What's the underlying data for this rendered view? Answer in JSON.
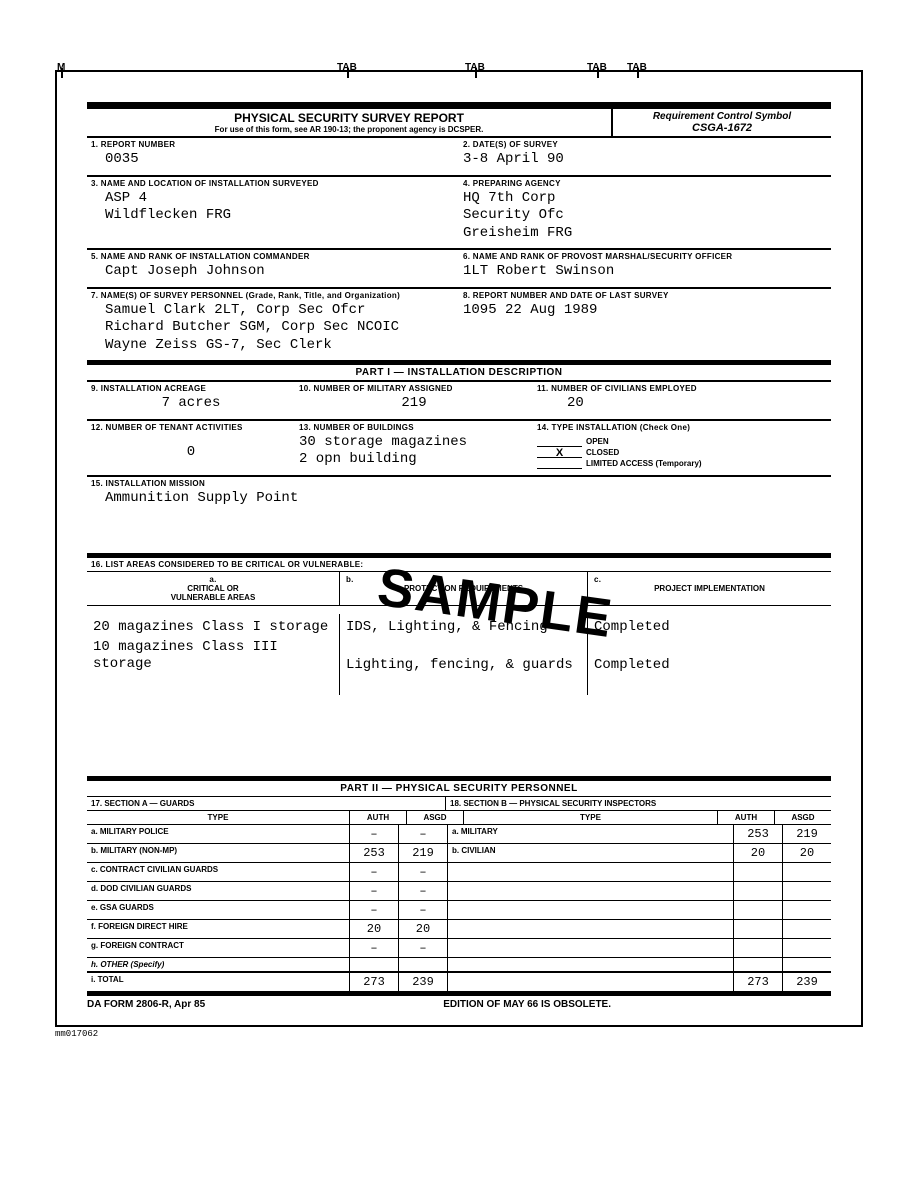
{
  "tabs": [
    "M",
    "TAB",
    "TAB",
    "TAB",
    "TAB"
  ],
  "header": {
    "title": "PHYSICAL SECURITY SURVEY REPORT",
    "subtitle": "For use of this form, see AR 190-13; the proponent agency is DCSPER.",
    "rcs_label": "Requirement Control Symbol",
    "rcs_value": "CSGA-1672"
  },
  "f1": {
    "label": "1. REPORT NUMBER",
    "value": "0035"
  },
  "f2": {
    "label": "2. DATE(S) OF SURVEY",
    "value": "3-8 April 90"
  },
  "f3": {
    "label": "3. NAME AND LOCATION OF INSTALLATION SURVEYED",
    "value": "ASP 4\nWildflecken FRG"
  },
  "f4": {
    "label": "4. PREPARING AGENCY",
    "value": "HQ 7th Corp\nSecurity Ofc\nGreisheim FRG"
  },
  "f5": {
    "label": "5. NAME AND RANK OF INSTALLATION COMMANDER",
    "value": "Capt Joseph Johnson"
  },
  "f6": {
    "label": "6. NAME AND RANK OF PROVOST MARSHAL/SECURITY OFFICER",
    "value": "1LT Robert Swinson"
  },
  "f7": {
    "label": "7. NAME(S) OF SURVEY PERSONNEL (Grade, Rank, Title, and Organization)",
    "value": "Samuel Clark 2LT, Corp Sec Ofcr\nRichard Butcher SGM, Corp Sec NCOIC\nWayne Zeiss GS-7, Sec Clerk"
  },
  "f8": {
    "label": "8. REPORT NUMBER AND DATE OF LAST SURVEY",
    "value": "1095   22 Aug 1989"
  },
  "part1_title": "PART I — INSTALLATION DESCRIPTION",
  "f9": {
    "label": "9. INSTALLATION ACREAGE",
    "value": "7 acres"
  },
  "f10": {
    "label": "10. NUMBER OF MILITARY ASSIGNED",
    "value": "219"
  },
  "f11": {
    "label": "11. NUMBER OF CIVILIANS EMPLOYED",
    "value": "20"
  },
  "f12": {
    "label": "12. NUMBER OF TENANT ACTIVITIES",
    "value": "0"
  },
  "f13": {
    "label": "13. NUMBER OF BUILDINGS",
    "value": "30 storage magazines\n2 opn building"
  },
  "f14": {
    "label": "14. TYPE INSTALLATION (Check One)",
    "open": "OPEN",
    "closed": "CLOSED",
    "limited": "LIMITED ACCESS (Temporary)",
    "check": "X"
  },
  "f15": {
    "label": "15. INSTALLATION MISSION",
    "value": "Ammunition Supply Point"
  },
  "f16": {
    "label": "16. LIST AREAS CONSIDERED TO BE CRITICAL OR VULNERABLE:",
    "colA": "CRITICAL OR\nVULNERABLE AREAS",
    "colB": "PROTECTION REQUIREMENTS",
    "colC": "PROJECT IMPLEMENTATION",
    "rows": [
      [
        "20 magazines Class I storage",
        "IDS, Lighting, & Fencing",
        "Completed"
      ],
      [
        "10 magazines Class III storage",
        "Lighting, fencing, & guards",
        "Completed"
      ]
    ]
  },
  "part2_title": "PART II — PHYSICAL SECURITY PERSONNEL",
  "p2": {
    "secA": "17. SECTION A — GUARDS",
    "secB": "18. SECTION B — PHYSICAL SECURITY INSPECTORS",
    "type": "TYPE",
    "auth": "AUTH",
    "asgd": "ASGD",
    "rowsA": [
      [
        "a. MILITARY POLICE",
        "–",
        "–"
      ],
      [
        "b. MILITARY (NON-MP)",
        "253",
        "219"
      ],
      [
        "c. CONTRACT CIVILIAN GUARDS",
        "–",
        "–"
      ],
      [
        "d. DOD CIVILIAN GUARDS",
        "–",
        "–"
      ],
      [
        "e. GSA GUARDS",
        "–",
        "–"
      ],
      [
        "f. FOREIGN DIRECT HIRE",
        "20",
        "20"
      ],
      [
        "g. FOREIGN CONTRACT",
        "–",
        "–"
      ],
      [
        "h. OTHER (Specify)",
        "",
        ""
      ],
      [
        "i. TOTAL",
        "273",
        "239"
      ]
    ],
    "rowsB": [
      [
        "a. MILITARY",
        "253",
        "219"
      ],
      [
        "b. CIVILIAN",
        "20",
        "20"
      ],
      [
        "",
        "",
        ""
      ],
      [
        "",
        "",
        ""
      ],
      [
        "",
        "",
        ""
      ],
      [
        "",
        "",
        ""
      ],
      [
        "",
        "",
        ""
      ],
      [
        "",
        "",
        ""
      ],
      [
        "",
        "273",
        "239"
      ]
    ]
  },
  "footer": {
    "form": "DA FORM 2806-R, Apr 85",
    "edition": "EDITION OF MAY 66 IS OBSOLETE."
  },
  "imgref": "mm017062",
  "sample": "SAMPLE"
}
